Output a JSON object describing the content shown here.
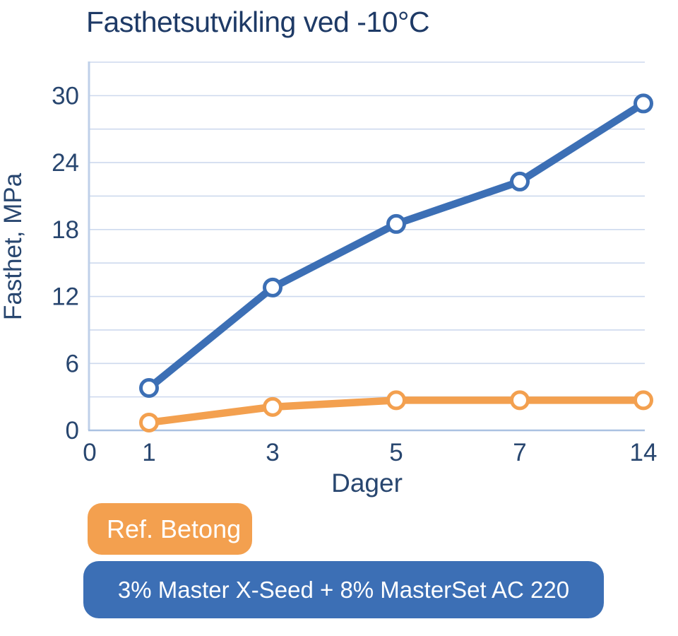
{
  "title": "Fasthetsutvikling ved -10°C",
  "chart_data": {
    "type": "line",
    "title": "Fasthetsutvikling ved -10°C",
    "xlabel": "Dager",
    "ylabel": "Fasthet, MPa",
    "x_categories": [
      1,
      3,
      5,
      7,
      14
    ],
    "x_tick_labels": [
      "0",
      "1",
      "3",
      "5",
      "7",
      "14"
    ],
    "y_ticks": [
      0,
      6,
      12,
      18,
      24,
      30
    ],
    "ylim": [
      0,
      33
    ],
    "grid": "horizontal, every 3 MPa",
    "legend_position": "below chart, bottom-left",
    "series": [
      {
        "name": "Ref. Betong",
        "color": "#f3a04f",
        "values": [
          0.7,
          2.1,
          2.7,
          2.7,
          2.7
        ]
      },
      {
        "name": "3% Master X-Seed + 8% MasterSet AC 220",
        "color": "#3c6fb5",
        "values": [
          3.8,
          12.8,
          18.5,
          22.3,
          29.3
        ]
      }
    ]
  },
  "legend": {
    "items": [
      {
        "label": "Ref. Betong",
        "color": "#f3a04f"
      },
      {
        "label": "3% Master X-Seed + 8% MasterSet AC 220",
        "color": "#3c6fb5"
      }
    ]
  },
  "colors": {
    "title_text": "#1e3a66",
    "axis_text": "#28466f",
    "gridline": "#cdd9ee",
    "axis_line": "#aac1e1",
    "plot_border": "#bfd0e9",
    "marker_fill": "#ffffff",
    "background": "#ffffff"
  }
}
